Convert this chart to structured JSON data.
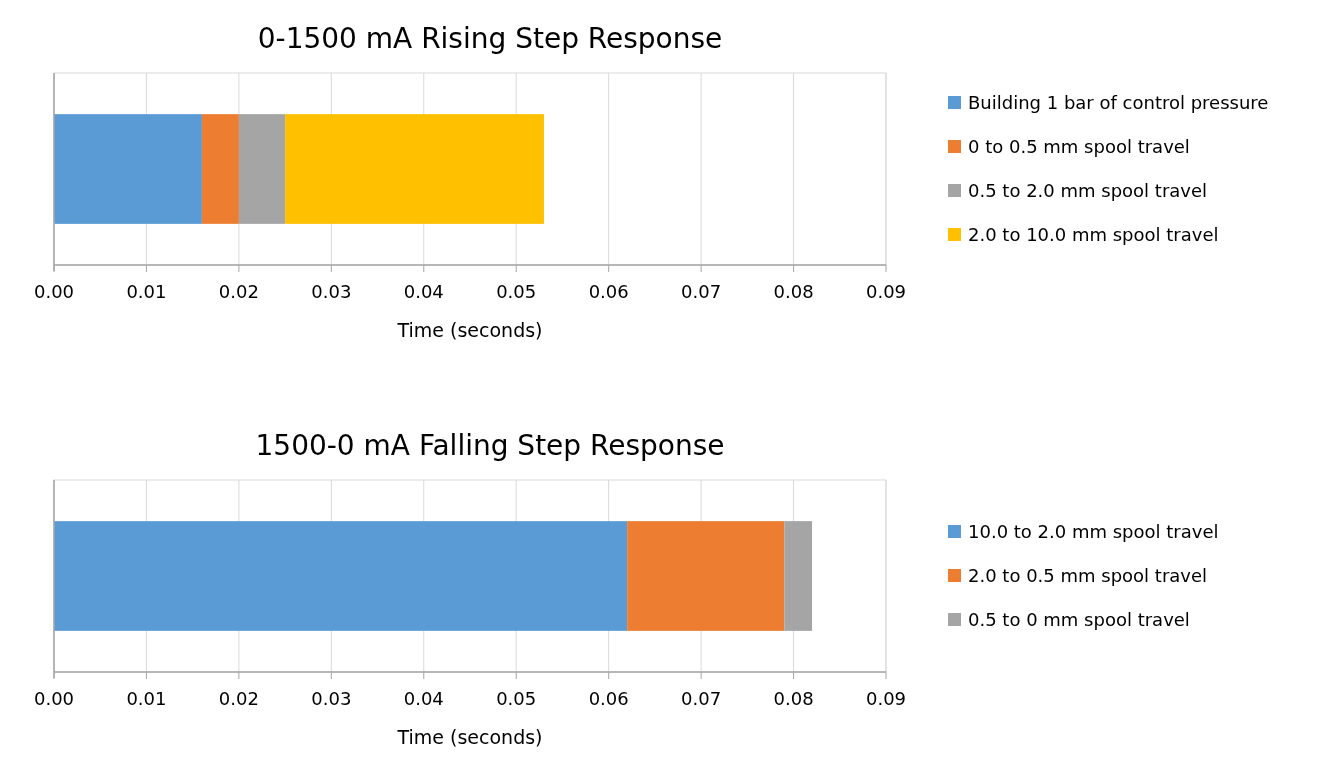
{
  "chart_data": [
    {
      "type": "bar",
      "orientation": "horizontal",
      "stacked": true,
      "title": "0-1500 mA Rising Step Response",
      "xlabel": "Time (seconds)",
      "categories": [
        null
      ],
      "xlim": [
        0,
        0.09
      ],
      "xticks": [
        {
          "value": 0,
          "label": "0.00"
        },
        0.01,
        0.02,
        0.03,
        0.04,
        0.05,
        0.06,
        0.07,
        0.08,
        0.09
      ],
      "grid": "x",
      "legend": "right",
      "series": [
        {
          "name": "Building 1 bar of control pressure",
          "color": "#5b9bd5",
          "values": [
            0.016
          ]
        },
        {
          "name": "0 to 0.5 mm spool travel",
          "color": "#ed7d31",
          "values": [
            0.004
          ]
        },
        {
          "name": "0.5 to 2.0 mm spool travel",
          "color": "#a5a5a5",
          "values": [
            0.005
          ]
        },
        {
          "name": "2.0 to 10.0 mm spool travel",
          "color": "#ffc000",
          "values": [
            0.028
          ]
        }
      ]
    },
    {
      "type": "bar",
      "orientation": "horizontal",
      "stacked": true,
      "title": "1500-0 mA Falling Step Response",
      "xlabel": "Time (seconds)",
      "categories": [
        null
      ],
      "xlim": [
        0,
        0.09
      ],
      "xticks": [
        {
          "value": 0,
          "label": "0.00"
        },
        0.01,
        0.02,
        0.03,
        0.04,
        0.05,
        0.06,
        0.07,
        0.08,
        0.09
      ],
      "grid": "x",
      "legend": "right",
      "series": [
        {
          "name": "10.0 to 2.0 mm spool travel",
          "color": "#5b9bd5",
          "values": [
            0.062
          ]
        },
        {
          "name": "2.0 to 0.5 mm spool travel",
          "color": "#ed7d31",
          "values": [
            0.017
          ]
        },
        {
          "name": "0.5 to 0 mm spool travel",
          "color": "#a5a5a5",
          "values": [
            0.003
          ]
        }
      ]
    }
  ]
}
